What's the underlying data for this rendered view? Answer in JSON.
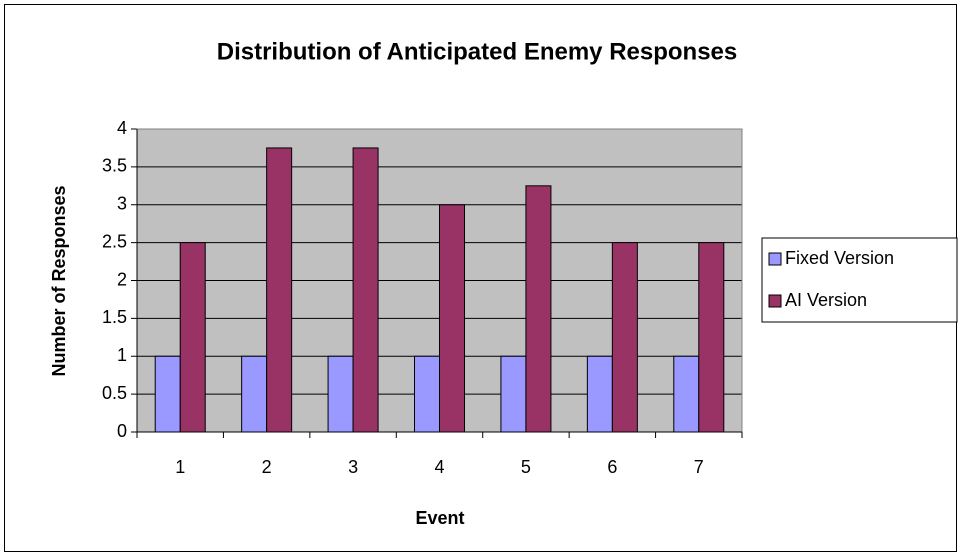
{
  "chart_data": {
    "type": "bar",
    "title": "Distribution of Anticipated Enemy Responses",
    "x_label": "Event",
    "y_label": "Number of Responses",
    "categories": [
      "1",
      "2",
      "3",
      "4",
      "5",
      "6",
      "7"
    ],
    "series": [
      {
        "name": "Fixed Version",
        "color": "#9999ff",
        "values": [
          1,
          1,
          1,
          1,
          1,
          1,
          1
        ]
      },
      {
        "name": "AI Version",
        "color": "#993366",
        "values": [
          2.5,
          3.75,
          3.75,
          3,
          3.25,
          2.5,
          2.5
        ]
      }
    ],
    "ylim": [
      0,
      4
    ],
    "yticks": [
      0,
      0.5,
      1,
      1.5,
      2,
      2.5,
      3,
      3.5,
      4
    ],
    "grid": true,
    "plot_background": "#c0c0c0",
    "legend": "right"
  }
}
